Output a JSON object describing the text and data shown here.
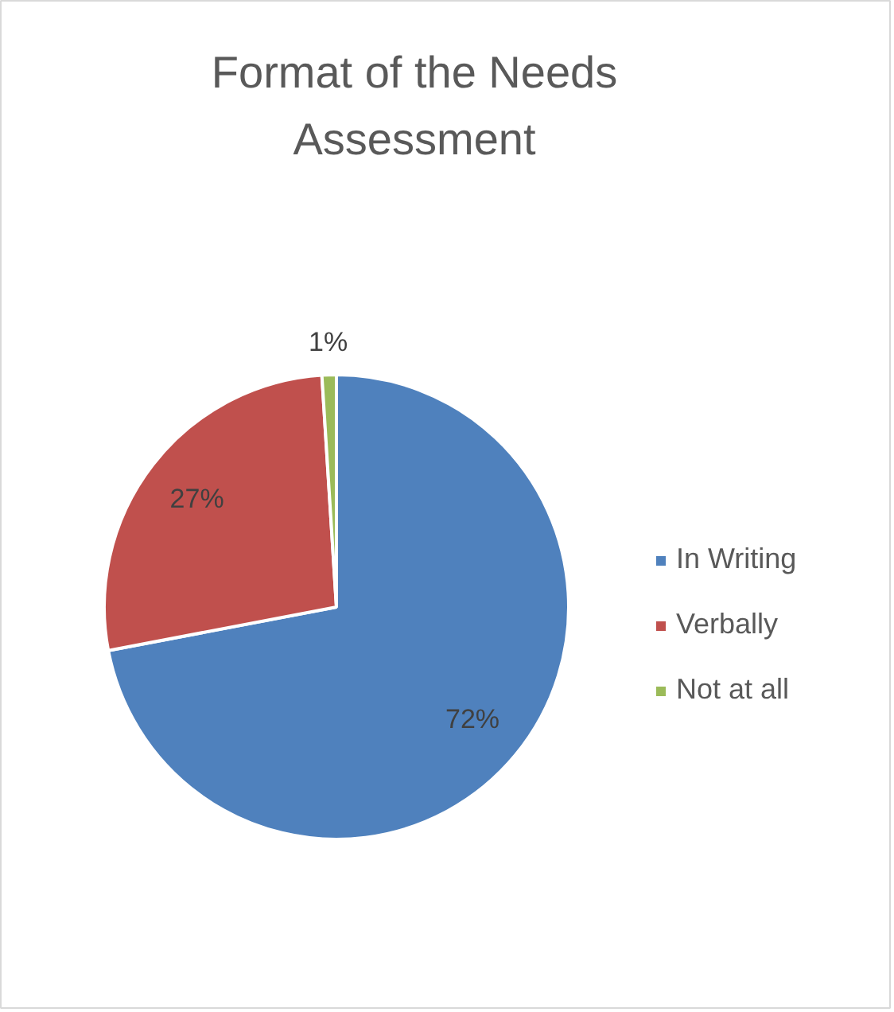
{
  "chart_data": {
    "type": "pie",
    "title": "Format of the Needs Assessment",
    "categories": [
      "In Writing",
      "Verbally",
      "Not at all"
    ],
    "values": [
      72,
      27,
      1
    ],
    "colors": [
      "#4f81bd",
      "#c0504d",
      "#9bbb59"
    ],
    "value_labels": [
      "72%",
      "27%",
      "1%"
    ],
    "legend": "right"
  }
}
